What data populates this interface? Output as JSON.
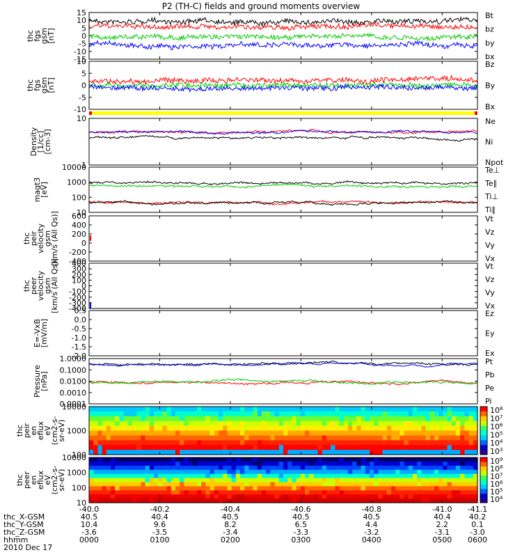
{
  "chart_data": {
    "type": "line",
    "title": "P2 (TH-C) fields and ground moments overview",
    "x_axis": {
      "range": [
        -40.0,
        -41.1
      ],
      "ticks": [
        "-40.0",
        "-40.2",
        "-40.4",
        "-40.6",
        "-40.8",
        "-41.0",
        "-41.1"
      ],
      "rows": [
        {
          "label": "thc_X-GSM",
          "values": [
            "40.5",
            "40.4",
            "40.5",
            "40.5",
            "40.5",
            "40.4",
            "40.2"
          ]
        },
        {
          "label": "thc_Y-GSM",
          "values": [
            "10.4",
            "9.6",
            "8.2",
            "6.5",
            "4.4",
            "2.2",
            "0.1"
          ]
        },
        {
          "label": "thc_Z-GSM",
          "values": [
            "-3.6",
            "-3.5",
            "-3.4",
            "-3.3",
            "-3.2",
            "-3.1",
            "-3.0"
          ]
        },
        {
          "label": "hhmm",
          "values": [
            "0000",
            "0100",
            "0200",
            "0300",
            "0400",
            "0500",
            "0600"
          ]
        }
      ],
      "date": "2010 Dec 17"
    },
    "panels": [
      {
        "ylabel": [
          "thc",
          "fgs",
          "gsm",
          "[nT]"
        ],
        "ylim": [
          -15,
          15
        ],
        "yticks": [
          "15",
          "10",
          "5",
          "0",
          "-5",
          "-10",
          "-15"
        ],
        "series": [
          {
            "name": "Bt",
            "color": "#000000"
          },
          {
            "name": "bz",
            "color": "#ff0000"
          },
          {
            "name": "by",
            "color": "#00cc00"
          },
          {
            "name": "bx",
            "color": "#0000ff"
          }
        ]
      },
      {
        "ylabel": [
          "thc",
          "fgs",
          "gsm",
          "[nT]"
        ],
        "ylim": [
          -15,
          10
        ],
        "yticks": [
          "10",
          "5",
          "0",
          "-5",
          "-10"
        ],
        "series": [
          {
            "name": "Bz",
            "color": "#ff0000"
          },
          {
            "name": "By",
            "color": "#00cc00"
          },
          {
            "name": "Bx",
            "color": "#0000ff"
          }
        ]
      },
      {
        "ylabel": [
          "Density",
          "[1/cc]",
          "[cm-3]"
        ],
        "ylim": [
          1,
          10
        ],
        "log": true,
        "yticks": [
          "10",
          "1"
        ],
        "series": [
          {
            "name": "Ne",
            "color": "#ff0000"
          },
          {
            "name": "Ni",
            "color": "#000000"
          },
          {
            "name": "Npot",
            "color": "#0000ff"
          }
        ]
      },
      {
        "ylabel": [
          "magt3",
          "[eV]"
        ],
        "ylim": [
          1,
          10000
        ],
        "log": true,
        "yticks": [
          "10000",
          "1000",
          "100",
          "10"
        ],
        "series": [
          {
            "name": "Te⊥",
            "color": "#ff0000"
          },
          {
            "name": "Te∥",
            "color": "#000000"
          },
          {
            "name": "Ti⊥",
            "color": "#000000"
          },
          {
            "name": "Ti∥",
            "color": "#00cc00"
          }
        ]
      },
      {
        "ylabel": [
          "thc",
          "peir",
          "velocity",
          "gsm",
          "[km/s (All Qs)]"
        ],
        "ylim": [
          -400,
          600
        ],
        "yticks": [
          "600",
          "400",
          "200",
          "0",
          "-200",
          "-400"
        ],
        "series": [
          {
            "name": "Vt",
            "color": "#000000"
          },
          {
            "name": "Vz",
            "color": "#ff0000"
          },
          {
            "name": "Vy",
            "color": "#00cc00"
          },
          {
            "name": "Vx",
            "color": "#0000ff"
          }
        ]
      },
      {
        "ylabel": [
          "thc",
          "peer",
          "velocity",
          "gsm",
          "[km/s (All Qs)]"
        ],
        "ylim": [
          -400,
          400
        ],
        "yticks": [
          "400",
          "300",
          "200",
          "100",
          "0",
          "-100",
          "-200",
          "-300",
          "-400"
        ],
        "series": [
          {
            "name": "Vt",
            "color": "#000000"
          },
          {
            "name": "Vz",
            "color": "#ff0000"
          },
          {
            "name": "Vy",
            "color": "#00cc00"
          },
          {
            "name": "Vx",
            "color": "#0000ff"
          }
        ]
      },
      {
        "ylabel": [
          "E=-VxB",
          "[mV/m]"
        ],
        "ylim": [
          -2.0,
          0.5
        ],
        "yticks": [
          "0.5",
          "0.0",
          "-0.5",
          "-1.0",
          "-1.5",
          "-2.0"
        ],
        "series": [
          {
            "name": "Ez",
            "color": "#ff0000"
          },
          {
            "name": "Ey",
            "color": "#00cc00"
          },
          {
            "name": "Ex",
            "color": "#0000ff"
          }
        ]
      },
      {
        "ylabel": [
          "Pressure",
          "[nPa]"
        ],
        "ylim": [
          0.0001,
          1.0
        ],
        "log": true,
        "yticks": [
          "1.0000",
          "0.1000",
          "0.0100",
          "0.0010",
          "0.0001"
        ],
        "series": [
          {
            "name": "Pt",
            "color": "#000000"
          },
          {
            "name": "Pb",
            "color": "#ff0000"
          },
          {
            "name": "Pe",
            "color": "#00cc00"
          },
          {
            "name": "Pi",
            "color": "#0000ff"
          }
        ]
      },
      {
        "type": "heatmap",
        "ylabel": [
          "thc",
          "peir",
          "en",
          "eflux",
          "eV",
          "(cm2-s-",
          "sr-eV)"
        ],
        "ylim": [
          5,
          20000
        ],
        "log": true,
        "yticks": [
          "10000",
          "1000",
          "100"
        ],
        "colorbar": [
          "10^8",
          "10^7",
          "10^6",
          "10^5",
          "10^4",
          "10^3"
        ]
      },
      {
        "type": "heatmap",
        "ylabel": [
          "thc",
          "peer",
          "en",
          "eflux",
          "eV",
          "(cm2-s-",
          "sr-eV)"
        ],
        "ylim": [
          5,
          20000
        ],
        "log": true,
        "yticks": [
          "10000",
          "1000",
          "100",
          "10"
        ],
        "colorbar": [
          "10^9",
          "10^8",
          "10^7",
          "10^6",
          "10^5",
          "10^4"
        ]
      }
    ]
  }
}
